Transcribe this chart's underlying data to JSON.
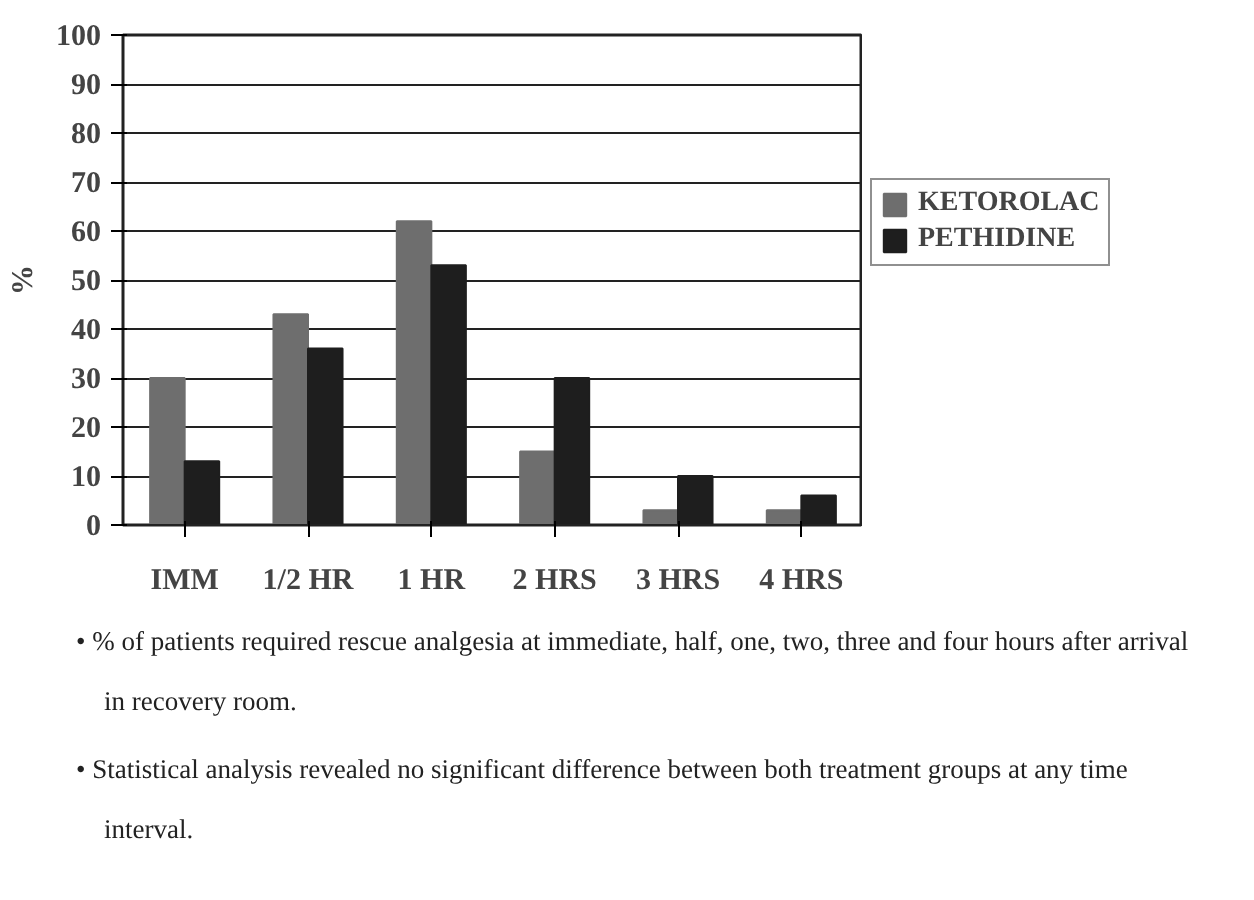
{
  "chart_data": {
    "type": "bar",
    "ylabel": "%",
    "categories": [
      "IMM",
      "1/2 HR",
      "1 HR",
      "2 HRS",
      "3 HRS",
      "4 HRS"
    ],
    "series": [
      {
        "name": "KETOROLAC",
        "color": "#6e6e6e",
        "values": [
          30,
          43,
          62,
          15,
          3,
          3
        ]
      },
      {
        "name": "PETHIDINE",
        "color": "#1e1e1e",
        "values": [
          13,
          36,
          53,
          30,
          10,
          6
        ]
      }
    ],
    "ylim": [
      0,
      100
    ],
    "yticks": [
      0,
      10,
      20,
      30,
      40,
      50,
      60,
      70,
      80,
      90,
      100
    ],
    "grid": "y",
    "legend": "right",
    "annotations": [
      "• % of patients required rescue analgesia at immediate, half, one, two, three and four hours after arrival in recovery room.",
      "• Statistical analysis revealed no significant difference between both treatment groups at any time interval."
    ]
  }
}
